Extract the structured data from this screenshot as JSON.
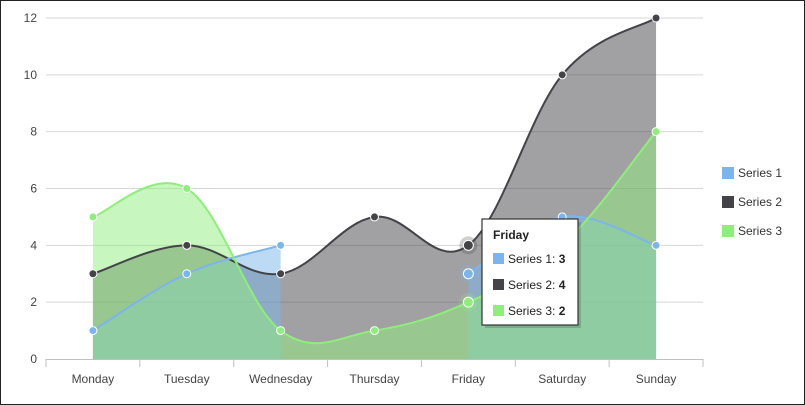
{
  "chart_data": {
    "type": "area",
    "categories": [
      "Monday",
      "Tuesday",
      "Wednesday",
      "Thursday",
      "Friday",
      "Saturday",
      "Sunday"
    ],
    "series": [
      {
        "name": "Series 1",
        "values": [
          1,
          3,
          4,
          null,
          3,
          5,
          4
        ],
        "color": "#7cb5ec"
      },
      {
        "name": "Series 2",
        "values": [
          3,
          4,
          3,
          5,
          4,
          10,
          12
        ],
        "color": "#434348"
      },
      {
        "name": "Series 3",
        "values": [
          5,
          6,
          1,
          1,
          2,
          4,
          8
        ],
        "color": "#90ed7d"
      }
    ],
    "ylim": [
      0,
      12
    ],
    "yticks": [
      0,
      2,
      4,
      6,
      8,
      10,
      12
    ],
    "grid": true,
    "legend": "right",
    "tooltip": {
      "title": "Friday",
      "items": [
        {
          "name": "Series 1",
          "value": "3"
        },
        {
          "name": "Series 2",
          "value": "4"
        },
        {
          "name": "Series 3",
          "value": "2"
        }
      ]
    }
  }
}
